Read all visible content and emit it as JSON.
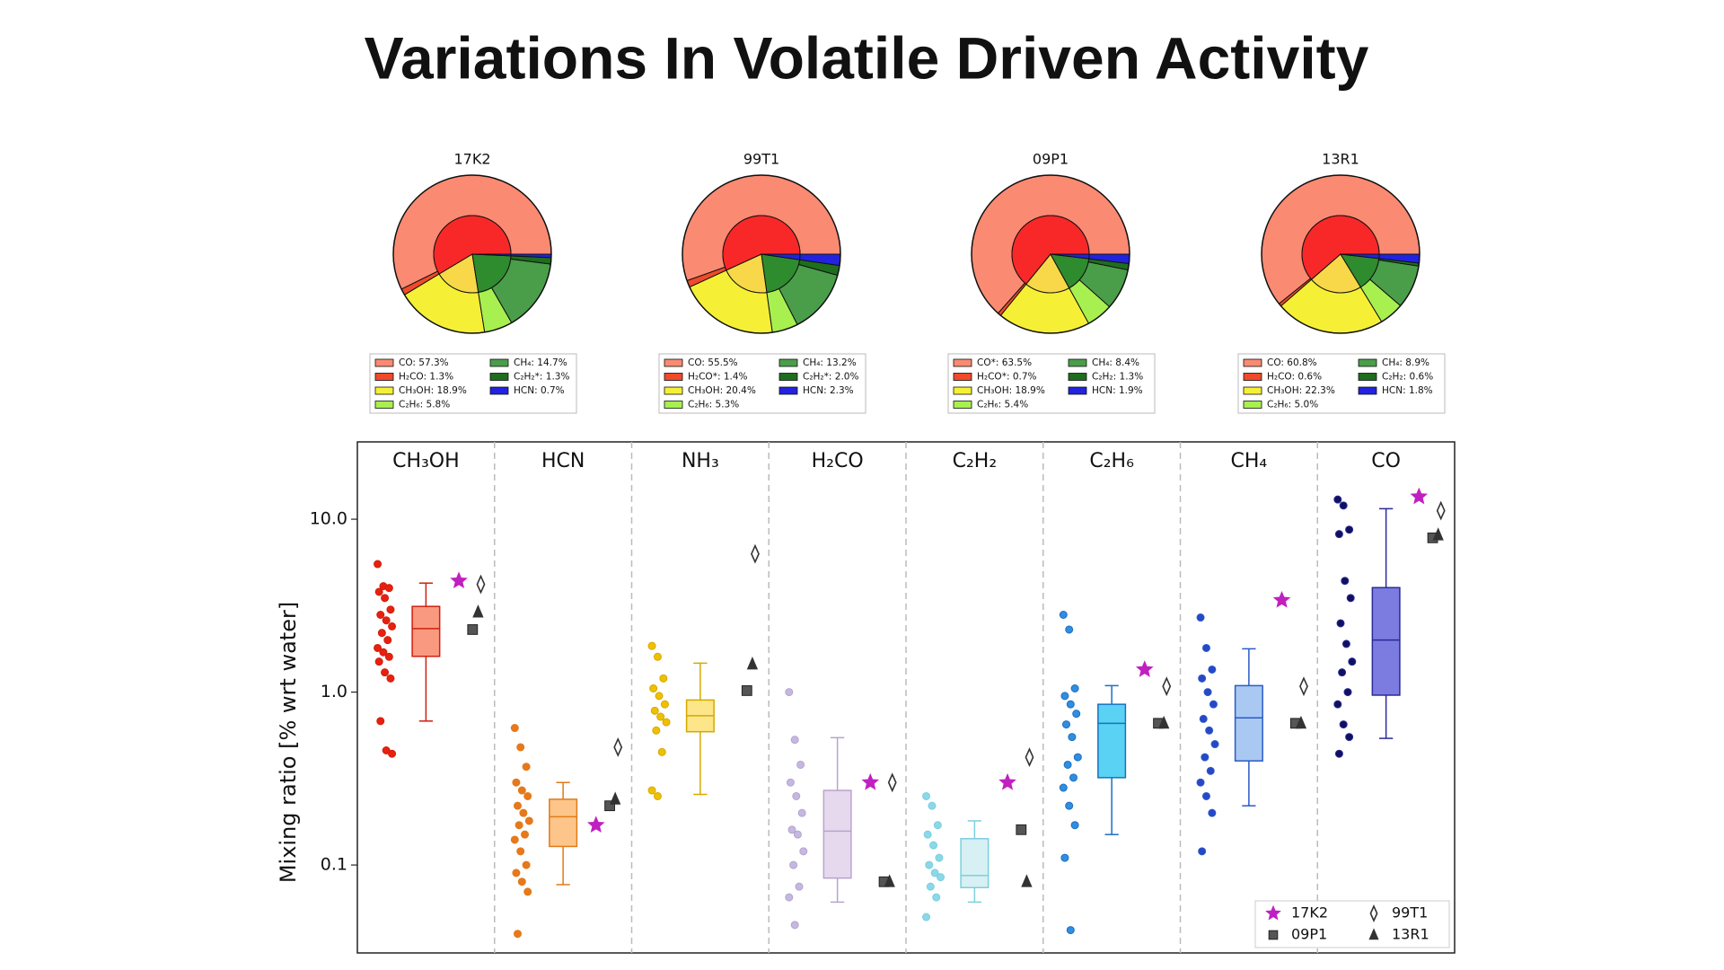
{
  "title": "Variations In Volatile Driven Activity",
  "chart_data": [
    {
      "type": "pie",
      "title": "17K2",
      "values": [
        57.3,
        1.3,
        18.9,
        5.8,
        14.7,
        1.3,
        0.7
      ],
      "value_labels": [
        "CO: 57.3%",
        "H₂CO: 1.3%",
        "CH₃OH: 18.9%",
        "C₂H₆: 5.8%",
        "CH₄: 14.7%",
        "C₂H₂*: 1.3%",
        "HCN: 0.7%"
      ],
      "colors": [
        "#fa8a72",
        "#f04a2a",
        "#f5f035",
        "#a8f050",
        "#4a9e4a",
        "#1e6e1e",
        "#2222e0"
      ],
      "inner_colors": [
        "#f82828",
        "#f82828",
        "#f8d848",
        "#2e8b2e",
        "#2e8b2e",
        "#2e8b2e",
        "#2222e0"
      ]
    },
    {
      "type": "pie",
      "title": "99T1",
      "values": [
        55.5,
        1.4,
        20.4,
        5.3,
        13.2,
        2.0,
        2.3
      ],
      "value_labels": [
        "CO: 55.5%",
        "H₂CO*: 1.4%",
        "CH₃OH: 20.4%",
        "C₂H₆: 5.3%",
        "CH₄: 13.2%",
        "C₂H₂*: 2.0%",
        "HCN: 2.3%"
      ],
      "colors": [
        "#fa8a72",
        "#f04a2a",
        "#f5f035",
        "#a8f050",
        "#4a9e4a",
        "#1e6e1e",
        "#2222e0"
      ],
      "inner_colors": [
        "#f82828",
        "#f82828",
        "#f8d848",
        "#2e8b2e",
        "#2e8b2e",
        "#2e8b2e",
        "#2222e0"
      ]
    },
    {
      "type": "pie",
      "title": "09P1",
      "values": [
        63.5,
        0.7,
        18.9,
        5.4,
        8.4,
        1.3,
        1.9
      ],
      "value_labels": [
        "CO*: 63.5%",
        "H₂CO*: 0.7%",
        "CH₃OH: 18.9%",
        "C₂H₆: 5.4%",
        "CH₄: 8.4%",
        "C₂H₂: 1.3%",
        "HCN: 1.9%"
      ],
      "colors": [
        "#fa8a72",
        "#f04a2a",
        "#f5f035",
        "#a8f050",
        "#4a9e4a",
        "#1e6e1e",
        "#2222e0"
      ],
      "inner_colors": [
        "#f82828",
        "#f82828",
        "#f8d848",
        "#2e8b2e",
        "#2e8b2e",
        "#2e8b2e",
        "#2222e0"
      ]
    },
    {
      "type": "pie",
      "title": "13R1",
      "values": [
        60.8,
        0.6,
        22.3,
        5.0,
        8.9,
        0.6,
        1.8
      ],
      "value_labels": [
        "CO: 60.8%",
        "H₂CO: 0.6%",
        "CH₃OH: 22.3%",
        "C₂H₆: 5.0%",
        "CH₄: 8.9%",
        "C₂H₂: 0.6%",
        "HCN: 1.8%"
      ],
      "colors": [
        "#fa8a72",
        "#f04a2a",
        "#f5f035",
        "#a8f050",
        "#4a9e4a",
        "#1e6e1e",
        "#2222e0"
      ],
      "inner_colors": [
        "#f82828",
        "#f82828",
        "#f8d848",
        "#2e8b2e",
        "#2e8b2e",
        "#2e8b2e",
        "#2222e0"
      ]
    },
    {
      "type": "box",
      "ylabel": "Mixing ratio [% wrt water]",
      "log_scale": true,
      "ylim": [
        0.031,
        28
      ],
      "yticks": [
        0.1,
        {
          "value": 1,
          "label": "1.0"
        },
        {
          "value": 10,
          "label": "10.0"
        }
      ],
      "categories": [
        "CH₃OH",
        "HCN",
        "NH₃",
        "H₂CO",
        "C₂H₂",
        "C₂H₆",
        "CH₄",
        "CO"
      ],
      "point_colors": [
        "#e8200f",
        "#e8781a",
        "#f0c000",
        "#c4b8e0",
        "#8ad8e8",
        "#2f8ee0",
        "#2747c8",
        "#101060"
      ],
      "box_colors": [
        "#f99a80",
        "#fdc58a",
        "#fde68a",
        "#e6d9ee",
        "#d6f0f4",
        "#5ad2f4",
        "#a9c9f2",
        "#7b7be0"
      ],
      "edge_colors": [
        "#d02010",
        "#e07b1a",
        "#d4a900",
        "#b8a3cc",
        "#7ccfdc",
        "#1c6fbf",
        "#2a5bc8",
        "#2a2a9a"
      ],
      "points": [
        [
          5.5,
          4.1,
          4.0,
          3.8,
          3.5,
          3.0,
          2.8,
          2.6,
          2.4,
          2.2,
          2.0,
          1.8,
          1.7,
          1.6,
          1.5,
          1.3,
          1.2,
          0.68,
          0.46,
          0.44
        ],
        [
          0.62,
          0.48,
          0.37,
          0.3,
          0.27,
          0.25,
          0.22,
          0.2,
          0.18,
          0.17,
          0.15,
          0.14,
          0.12,
          0.1,
          0.09,
          0.08,
          0.07,
          0.04
        ],
        [
          1.85,
          1.6,
          1.2,
          1.05,
          0.95,
          0.85,
          0.78,
          0.72,
          0.67,
          0.6,
          0.45,
          0.27,
          0.25
        ],
        [
          1.0,
          0.53,
          0.38,
          0.3,
          0.25,
          0.2,
          0.16,
          0.15,
          0.12,
          0.1,
          0.075,
          0.065,
          0.045
        ],
        [
          0.25,
          0.22,
          0.17,
          0.15,
          0.13,
          0.11,
          0.1,
          0.09,
          0.085,
          0.075,
          0.065,
          0.05
        ],
        [
          2.8,
          2.3,
          1.05,
          0.95,
          0.85,
          0.75,
          0.65,
          0.55,
          0.42,
          0.38,
          0.32,
          0.28,
          0.22,
          0.17,
          0.11,
          0.042
        ],
        [
          2.7,
          1.8,
          1.35,
          1.2,
          1.0,
          0.85,
          0.7,
          0.6,
          0.5,
          0.42,
          0.35,
          0.3,
          0.25,
          0.2,
          0.12
        ],
        [
          13,
          12,
          8.7,
          8.2,
          4.4,
          3.5,
          2.5,
          1.9,
          1.5,
          1.3,
          1.0,
          0.85,
          0.65,
          0.55,
          0.44
        ]
      ],
      "boxes": [
        {
          "whislo": 0.68,
          "q1": 1.61,
          "med": 2.33,
          "q3": 3.13,
          "whishi": 4.27
        },
        {
          "whislo": 0.077,
          "q1": 0.128,
          "med": 0.19,
          "q3": 0.24,
          "whishi": 0.3
        },
        {
          "whislo": 0.256,
          "q1": 0.59,
          "med": 0.73,
          "q3": 0.9,
          "whishi": 1.47
        },
        {
          "whislo": 0.061,
          "q1": 0.084,
          "med": 0.157,
          "q3": 0.27,
          "whishi": 0.545
        },
        {
          "whislo": 0.061,
          "q1": 0.074,
          "med": 0.087,
          "q3": 0.142,
          "whishi": 0.18
        },
        {
          "whislo": 0.15,
          "q1": 0.32,
          "med": 0.66,
          "q3": 0.85,
          "whishi": 1.09
        },
        {
          "whislo": 0.22,
          "q1": 0.4,
          "med": 0.71,
          "q3": 1.09,
          "whishi": 1.78
        },
        {
          "whislo": 0.54,
          "q1": 0.96,
          "med": 2.0,
          "q3": 4.02,
          "whishi": 11.5
        }
      ],
      "series": [
        {
          "name": "17K2",
          "marker": "star",
          "color": "#c020c0",
          "values": [
            4.4,
            0.17,
            null,
            0.3,
            0.3,
            1.35,
            3.4,
            13.5
          ]
        },
        {
          "name": "99T1",
          "marker": "diamond",
          "color": "#333333",
          "values": [
            4.2,
            0.48,
            6.3,
            0.3,
            0.42,
            1.08,
            1.08,
            11.2
          ]
        },
        {
          "name": "09P1",
          "marker": "square",
          "color": "#555555",
          "values": [
            2.3,
            0.22,
            1.02,
            0.08,
            0.16,
            0.66,
            0.66,
            7.8
          ]
        },
        {
          "name": "13R1",
          "marker": "triangle",
          "color": "#333333",
          "values": [
            2.9,
            0.24,
            1.45,
            0.08,
            0.08,
            0.66,
            0.66,
            8.1
          ]
        }
      ],
      "legend": "lower right"
    }
  ]
}
